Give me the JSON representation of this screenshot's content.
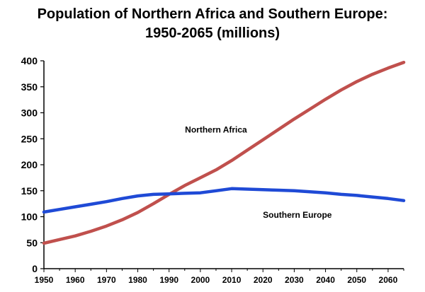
{
  "chart_data": {
    "type": "line",
    "title": "Population of Northern Africa and Southern Europe:",
    "subtitle": "1950-2065 (millions)",
    "xlabel": "",
    "ylabel": "",
    "xlim": [
      1950,
      2065
    ],
    "ylim": [
      0,
      400
    ],
    "x_ticks": [
      1950,
      1960,
      1970,
      1980,
      1990,
      2000,
      2010,
      2020,
      2030,
      2040,
      2050,
      2060
    ],
    "y_ticks": [
      0,
      50,
      100,
      150,
      200,
      250,
      300,
      350,
      400
    ],
    "grid": false,
    "legend": "none",
    "x": [
      1950,
      1955,
      1960,
      1965,
      1970,
      1975,
      1980,
      1985,
      1990,
      1995,
      2000,
      2005,
      2010,
      2015,
      2020,
      2025,
      2030,
      2035,
      2040,
      2045,
      2050,
      2055,
      2060,
      2065
    ],
    "series": [
      {
        "name": "Northern Africa",
        "color": "#c0504d",
        "values": [
          49,
          56,
          63,
          72,
          82,
          94,
          108,
          125,
          143,
          160,
          175,
          190,
          208,
          228,
          248,
          268,
          288,
          307,
          326,
          344,
          360,
          374,
          386,
          397
        ]
      },
      {
        "name": "Southern Europe",
        "color": "#1f4ad6",
        "values": [
          109,
          114,
          119,
          124,
          129,
          135,
          140,
          143,
          144,
          145,
          146,
          150,
          154,
          153,
          152,
          151,
          150,
          148,
          146,
          143,
          141,
          138,
          135,
          131
        ]
      }
    ],
    "annotations": [
      {
        "text": "Northern Africa",
        "x": 2005,
        "y": 262
      },
      {
        "text": "Southern Europe",
        "x": 2031,
        "y": 98
      }
    ]
  }
}
